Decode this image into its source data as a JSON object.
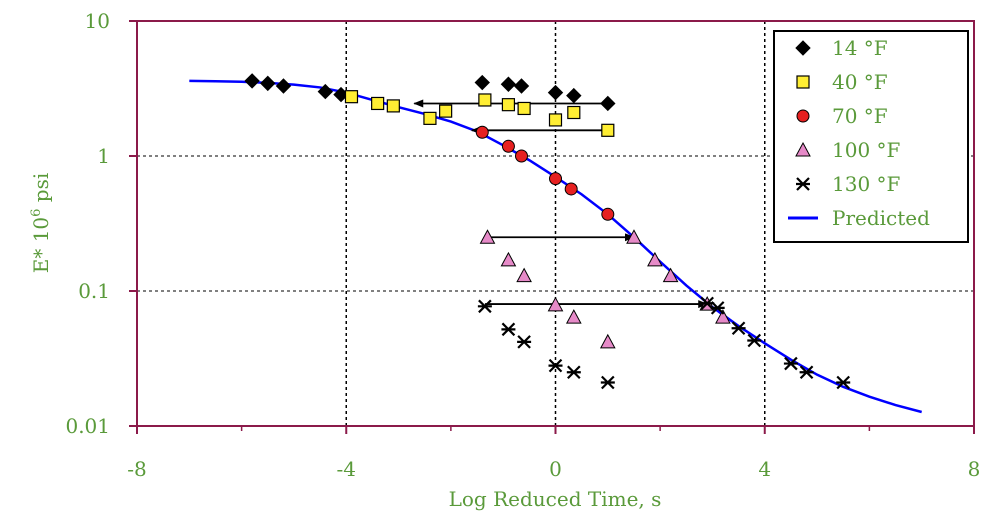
{
  "chart_data": {
    "type": "scatter",
    "title": "",
    "xlabel": "Log Reduced Time, s",
    "ylabel": {
      "prefix": "E* 10",
      "sup": "6",
      "suffix": " psi"
    },
    "xlim": [
      -8,
      8
    ],
    "ylim": [
      0.01,
      10
    ],
    "yscale": "log",
    "x_ticks": [
      -8,
      -4,
      0,
      4,
      8
    ],
    "x_tick_labels": [
      "-8",
      "-4",
      "0",
      "4",
      "8"
    ],
    "y_ticks": [
      0.01,
      0.1,
      1,
      10
    ],
    "y_tick_labels": [
      "0.01",
      "0.1",
      "1",
      "10"
    ],
    "grid": "dashed at x=-4,0,4 and y=0.1,1",
    "legend_position": "top-right",
    "series": [
      {
        "name": "14 °F",
        "marker": "diamond",
        "color": "#000000",
        "points": [
          [
            -5.8,
            3.6
          ],
          [
            -5.5,
            3.45
          ],
          [
            -5.2,
            3.3
          ],
          [
            -4.4,
            3.0
          ],
          [
            -4.1,
            2.85
          ],
          [
            -1.4,
            3.5
          ],
          [
            -0.9,
            3.4
          ],
          [
            -0.65,
            3.3
          ],
          [
            0,
            2.95
          ],
          [
            0.35,
            2.8
          ],
          [
            1.0,
            2.45
          ]
        ]
      },
      {
        "name": "40 °F",
        "marker": "square",
        "color": "#ffee33",
        "points": [
          [
            -3.9,
            2.75
          ],
          [
            -3.4,
            2.45
          ],
          [
            -3.1,
            2.35
          ],
          [
            -2.4,
            1.9
          ],
          [
            -2.1,
            2.15
          ],
          [
            -1.35,
            2.6
          ],
          [
            -0.9,
            2.4
          ],
          [
            -0.6,
            2.25
          ],
          [
            0,
            1.85
          ],
          [
            0.35,
            2.1
          ],
          [
            1.0,
            1.55
          ]
        ]
      },
      {
        "name": "70 °F",
        "marker": "circle",
        "color": "#e62020",
        "points": [
          [
            -1.4,
            1.5
          ],
          [
            -0.9,
            1.18
          ],
          [
            -0.65,
            1.0
          ],
          [
            0,
            0.68
          ],
          [
            0.3,
            0.57
          ],
          [
            1.0,
            0.37
          ]
        ]
      },
      {
        "name": "100 °F",
        "marker": "triangle",
        "color": "#e68ac8",
        "points": [
          [
            -1.3,
            0.25
          ],
          [
            -0.9,
            0.17
          ],
          [
            -0.6,
            0.13
          ],
          [
            0,
            0.079
          ],
          [
            0.35,
            0.064
          ],
          [
            1.0,
            0.042
          ],
          [
            1.5,
            0.25
          ],
          [
            1.9,
            0.17
          ],
          [
            2.2,
            0.13
          ],
          [
            2.9,
            0.08
          ],
          [
            3.2,
            0.064
          ]
        ]
      },
      {
        "name": "130 °F",
        "marker": "asterisk",
        "color": "#000000",
        "points": [
          [
            -1.35,
            0.077
          ],
          [
            -0.9,
            0.052
          ],
          [
            -0.6,
            0.042
          ],
          [
            0,
            0.028
          ],
          [
            0.35,
            0.025
          ],
          [
            1.0,
            0.021
          ],
          [
            2.9,
            0.081
          ],
          [
            3.1,
            0.075
          ],
          [
            3.5,
            0.053
          ],
          [
            3.8,
            0.043
          ],
          [
            4.5,
            0.029
          ],
          [
            4.8,
            0.025
          ],
          [
            5.5,
            0.021
          ]
        ]
      },
      {
        "name": "Predicted",
        "marker": "line",
        "color": "#0000ff",
        "points": [
          [
            -7,
            3.6
          ],
          [
            -6.5,
            3.58
          ],
          [
            -6,
            3.55
          ],
          [
            -5.5,
            3.48
          ],
          [
            -5,
            3.38
          ],
          [
            -4.5,
            3.22
          ],
          [
            -4,
            2.95
          ],
          [
            -3.5,
            2.6
          ],
          [
            -3,
            2.3
          ],
          [
            -2.5,
            2.05
          ],
          [
            -2,
            1.8
          ],
          [
            -1.5,
            1.52
          ],
          [
            -1,
            1.2
          ],
          [
            -0.5,
            0.93
          ],
          [
            0,
            0.7
          ],
          [
            0.5,
            0.52
          ],
          [
            1,
            0.37
          ],
          [
            1.5,
            0.25
          ],
          [
            2,
            0.165
          ],
          [
            2.5,
            0.11
          ],
          [
            3,
            0.076
          ],
          [
            3.5,
            0.055
          ],
          [
            4,
            0.041
          ],
          [
            4.5,
            0.031
          ],
          [
            5,
            0.024
          ],
          [
            5.5,
            0.0195
          ],
          [
            6,
            0.0165
          ],
          [
            6.5,
            0.0143
          ],
          [
            7,
            0.0127
          ]
        ]
      }
    ],
    "shift_arrows": [
      {
        "from": [
          1.0,
          2.45
        ],
        "to": [
          -2.7,
          2.45
        ]
      },
      {
        "from": [
          1.0,
          1.55
        ],
        "to": [
          -1.6,
          1.55
        ]
      },
      {
        "from": [
          -1.3,
          0.25
        ],
        "to": [
          1.5,
          0.25
        ]
      },
      {
        "from": [
          -1.35,
          0.08
        ],
        "to": [
          2.9,
          0.08
        ]
      }
    ]
  }
}
